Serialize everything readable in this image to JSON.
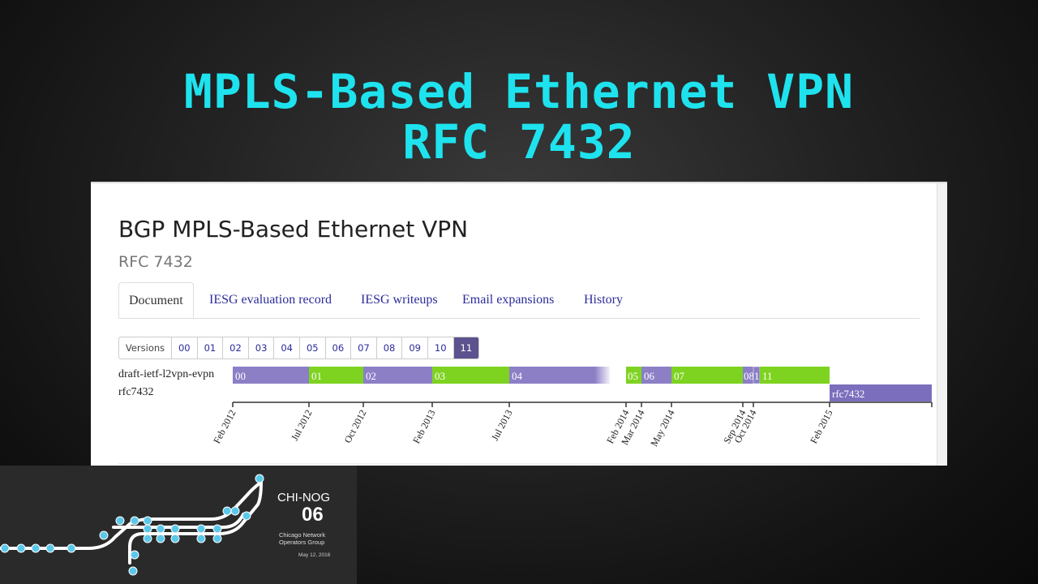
{
  "slide": {
    "title_line1": "MPLS-Based Ethernet VPN",
    "title_line2": "RFC 7432"
  },
  "doc": {
    "title": "BGP MPLS-Based Ethernet VPN",
    "subtitle": "RFC 7432"
  },
  "tabs": [
    {
      "label": "Document",
      "active": true
    },
    {
      "label": "IESG evaluation record",
      "active": false
    },
    {
      "label": "IESG writeups",
      "active": false
    },
    {
      "label": "Email expansions",
      "active": false
    },
    {
      "label": "History",
      "active": false
    }
  ],
  "versions": {
    "label": "Versions",
    "items": [
      "00",
      "01",
      "02",
      "03",
      "04",
      "05",
      "06",
      "07",
      "08",
      "09",
      "10",
      "11"
    ],
    "active": "11"
  },
  "timeline": {
    "rows": [
      "draft-ietf-l2vpn-evpn",
      "rfc7432"
    ],
    "draft_segments": [
      {
        "label": "00",
        "color": "#8c7fc6"
      },
      {
        "label": "01",
        "color": "#7ed321"
      },
      {
        "label": "02",
        "color": "#8c7fc6"
      },
      {
        "label": "03",
        "color": "#7ed321"
      },
      {
        "label": "04",
        "color": "#8c7fc6"
      },
      {
        "label": "05",
        "color": "#7ed321"
      },
      {
        "label": "06",
        "color": "#8c7fc6"
      },
      {
        "label": "07",
        "color": "#7ed321"
      },
      {
        "label": "08",
        "color": "#8c7fc6"
      },
      {
        "label": "1",
        "color": "#8c7fc6"
      },
      {
        "label": "11",
        "color": "#7ed321"
      }
    ],
    "rfc_segment": {
      "label": "rfc7432",
      "color": "#7b6fbd"
    },
    "ticks": [
      "Feb 2012",
      "Jul 2012",
      "Oct 2012",
      "Feb 2013",
      "Jul 2013",
      "Feb 2014",
      "Mar 2014",
      "May 2014",
      "Sep 2014",
      "Oct 2014",
      "Feb 2015"
    ]
  },
  "footer": {
    "org": "CHI-NOG",
    "edition": "06",
    "group_line1": "Chicago Network",
    "group_line2": "Operators Group",
    "date": "May 12, 2016"
  },
  "colors": {
    "title": "#1ee3ee",
    "purple": "#8c7fc6",
    "green": "#7ed321",
    "link": "#2b2b9a",
    "active_version": "#5b528e"
  }
}
